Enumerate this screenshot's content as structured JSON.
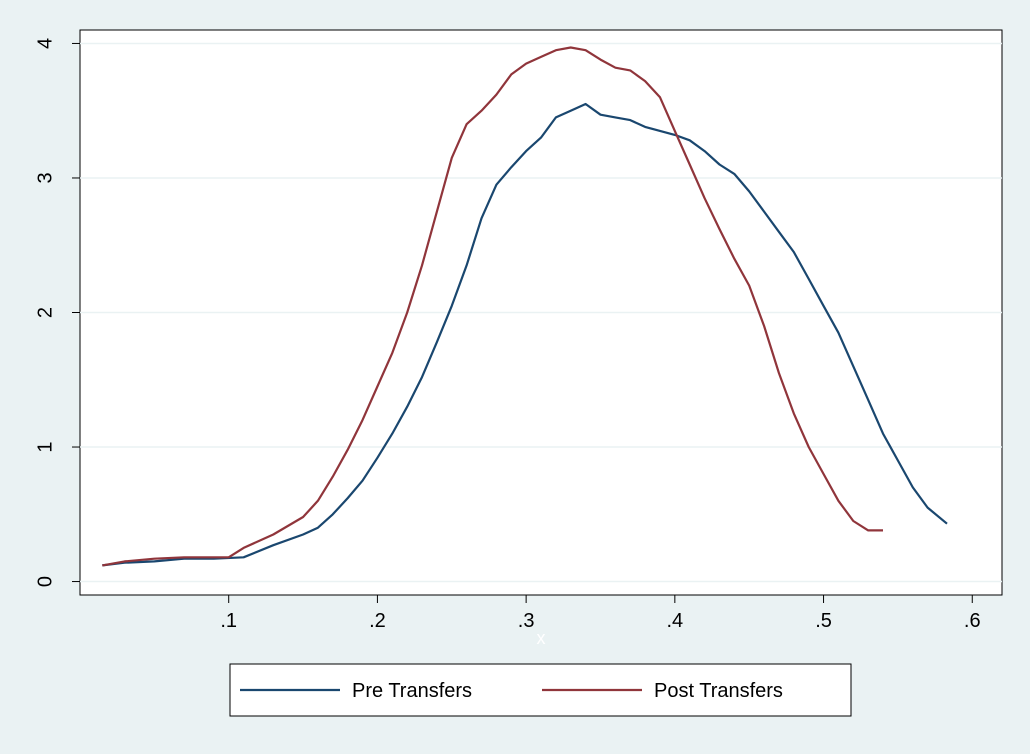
{
  "chart_data": {
    "type": "line",
    "xlabel": "x",
    "ylabel": "",
    "xlim": [
      0.0,
      0.62
    ],
    "ylim": [
      -0.1,
      4.1
    ],
    "xticks": [
      0.1,
      0.2,
      0.3,
      0.4,
      0.5,
      0.6
    ],
    "xtick_labels": [
      ".1",
      ".2",
      ".3",
      ".4",
      ".5",
      ".6"
    ],
    "yticks": [
      0,
      1,
      2,
      3,
      4
    ],
    "ytick_labels": [
      "0",
      "1",
      "2",
      "3",
      "4"
    ],
    "grid": true,
    "legend_position": "bottom",
    "series": [
      {
        "name": "Pre Transfers",
        "color": "#1a476f",
        "x": [
          0.015,
          0.03,
          0.05,
          0.07,
          0.09,
          0.11,
          0.13,
          0.15,
          0.16,
          0.17,
          0.18,
          0.19,
          0.2,
          0.21,
          0.22,
          0.23,
          0.24,
          0.25,
          0.26,
          0.27,
          0.28,
          0.29,
          0.3,
          0.31,
          0.32,
          0.33,
          0.34,
          0.35,
          0.36,
          0.37,
          0.38,
          0.39,
          0.4,
          0.41,
          0.42,
          0.43,
          0.44,
          0.45,
          0.46,
          0.47,
          0.48,
          0.49,
          0.5,
          0.51,
          0.52,
          0.53,
          0.54,
          0.55,
          0.56,
          0.57,
          0.583
        ],
        "y": [
          0.12,
          0.14,
          0.15,
          0.17,
          0.17,
          0.18,
          0.27,
          0.35,
          0.4,
          0.5,
          0.62,
          0.75,
          0.92,
          1.1,
          1.3,
          1.52,
          1.78,
          2.05,
          2.35,
          2.7,
          2.95,
          3.08,
          3.2,
          3.3,
          3.45,
          3.5,
          3.55,
          3.47,
          3.45,
          3.43,
          3.38,
          3.35,
          3.32,
          3.28,
          3.2,
          3.1,
          3.03,
          2.9,
          2.75,
          2.6,
          2.45,
          2.25,
          2.05,
          1.85,
          1.6,
          1.35,
          1.1,
          0.9,
          0.7,
          0.55,
          0.43
        ]
      },
      {
        "name": "Post Transfers",
        "color": "#90353b",
        "x": [
          0.015,
          0.03,
          0.05,
          0.07,
          0.09,
          0.1,
          0.11,
          0.13,
          0.15,
          0.16,
          0.17,
          0.18,
          0.19,
          0.2,
          0.21,
          0.22,
          0.23,
          0.24,
          0.25,
          0.26,
          0.27,
          0.28,
          0.29,
          0.3,
          0.31,
          0.32,
          0.33,
          0.34,
          0.35,
          0.36,
          0.37,
          0.38,
          0.39,
          0.4,
          0.41,
          0.42,
          0.43,
          0.44,
          0.45,
          0.46,
          0.47,
          0.48,
          0.49,
          0.5,
          0.51,
          0.52,
          0.53,
          0.54
        ],
        "y": [
          0.12,
          0.15,
          0.17,
          0.18,
          0.18,
          0.18,
          0.25,
          0.35,
          0.48,
          0.6,
          0.78,
          0.98,
          1.2,
          1.45,
          1.7,
          2.0,
          2.35,
          2.75,
          3.15,
          3.4,
          3.5,
          3.62,
          3.77,
          3.85,
          3.9,
          3.95,
          3.97,
          3.95,
          3.88,
          3.82,
          3.8,
          3.72,
          3.6,
          3.35,
          3.1,
          2.85,
          2.62,
          2.4,
          2.2,
          1.9,
          1.55,
          1.25,
          1.0,
          0.8,
          0.6,
          0.45,
          0.38,
          0.38
        ]
      }
    ]
  }
}
